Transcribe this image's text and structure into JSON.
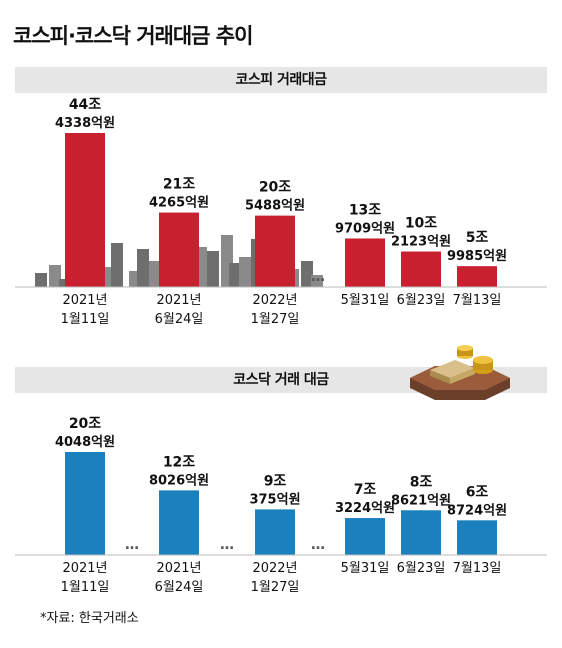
{
  "title": "코스피·코스닥 거래대금 추이",
  "source": "*자료: 한국거래소",
  "colors": {
    "kospi": "#c8202e",
    "kosdaq": "#1a80be",
    "header_bg": "#e6e6e6"
  },
  "chart_data": [
    {
      "type": "bar",
      "title": "코스피 거래대금",
      "categories": [
        [
          "2021년",
          "1월11일"
        ],
        [
          "2021년",
          "6월24일"
        ],
        [
          "2022년",
          "1월27일"
        ],
        [
          "5월31일"
        ],
        [
          "6월23일"
        ],
        [
          "7월13일"
        ]
      ],
      "values": [
        443380,
        214265,
        205488,
        139709,
        102123,
        59985
      ],
      "value_labels": [
        [
          "44조",
          "4338억원"
        ],
        [
          "21조",
          "4265억원"
        ],
        [
          "20조",
          "5488억원"
        ],
        [
          "13조",
          "9709억원"
        ],
        [
          "10조",
          "2123억원"
        ],
        [
          "5조",
          "9985억원"
        ]
      ],
      "unit": "억원",
      "gap_markers": [
        "…"
      ]
    },
    {
      "type": "bar",
      "title": "코스닥 거래 대금",
      "categories": [
        [
          "2021년",
          "1월11일"
        ],
        [
          "2021년",
          "6월24일"
        ],
        [
          "2022년",
          "1월27일"
        ],
        [
          "5월31일"
        ],
        [
          "6월23일"
        ],
        [
          "7월13일"
        ]
      ],
      "values": [
        204048,
        128026,
        90375,
        73224,
        88621,
        68724
      ],
      "value_labels": [
        [
          "20조",
          "4048억원"
        ],
        [
          "12조",
          "8026억원"
        ],
        [
          "9조",
          "375억원"
        ],
        [
          "7조",
          "3224억원"
        ],
        [
          "8조",
          "8621억원"
        ],
        [
          "6조",
          "8724억원"
        ]
      ],
      "unit": "억원",
      "gap_markers": [
        "…",
        "…",
        "…"
      ]
    }
  ]
}
